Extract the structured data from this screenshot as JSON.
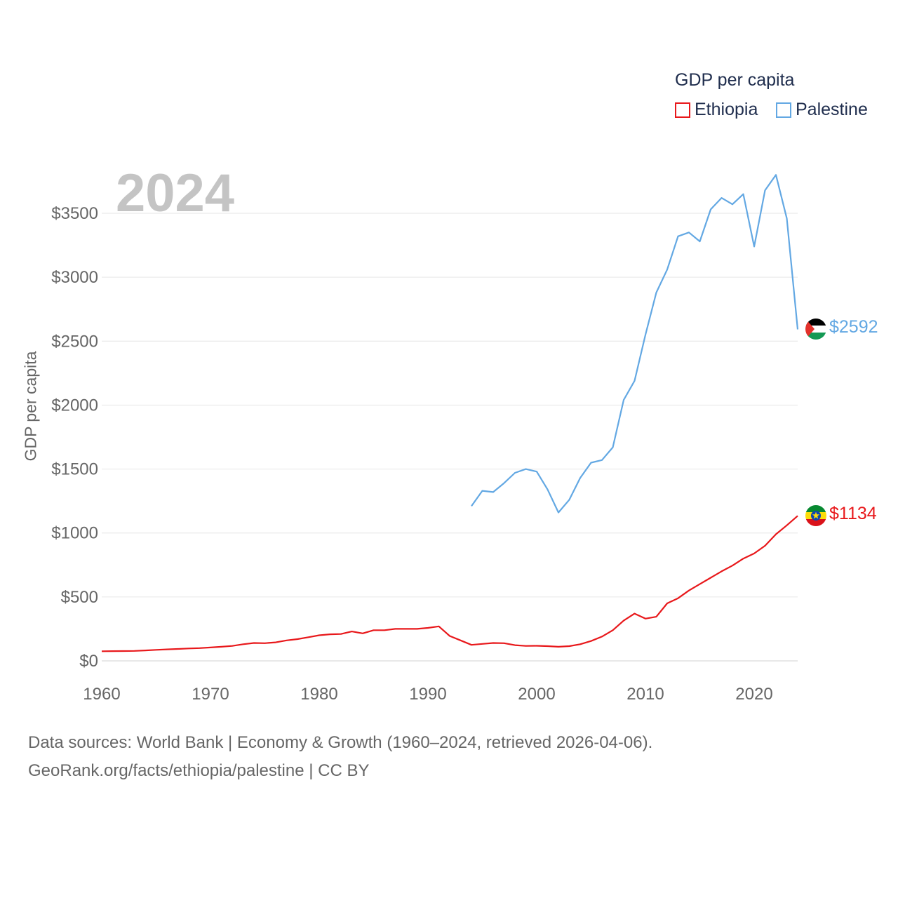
{
  "legend": {
    "title": "GDP per capita",
    "items": [
      {
        "name": "Ethiopia",
        "color": "#e8181b"
      },
      {
        "name": "Palestine",
        "color": "#63a8e3"
      }
    ]
  },
  "year_label": "2024",
  "end_labels": {
    "ethiopia": "$1134",
    "palestine": "$2592"
  },
  "footer": {
    "line1": "Data sources: World Bank | Economy & Growth (1960–2024, retrieved 2026-04-06).",
    "line2": "GeoRank.org/facts/ethiopia/palestine | CC BY"
  },
  "chart_data": {
    "type": "line",
    "title": "GDP per capita",
    "xlabel": "",
    "ylabel": "GDP per capita",
    "xlim": [
      1960,
      2024
    ],
    "ylim": [
      0,
      3500
    ],
    "x_ticks": [
      1960,
      1970,
      1980,
      1990,
      2000,
      2010,
      2020
    ],
    "x_tick_labels": [
      "1960",
      "1970",
      "1980",
      "1990",
      "2000",
      "2010",
      "2020"
    ],
    "y_ticks": [
      0,
      500,
      1000,
      1500,
      2000,
      2500,
      3000,
      3500
    ],
    "y_tick_labels": [
      "$0",
      "$500",
      "$1000",
      "$1500",
      "$2000",
      "$2500",
      "$3000",
      "$3500"
    ],
    "grid": true,
    "series": [
      {
        "name": "Ethiopia",
        "color": "#e8181b",
        "x": [
          1960,
          1961,
          1962,
          1963,
          1964,
          1965,
          1966,
          1967,
          1968,
          1969,
          1970,
          1971,
          1972,
          1973,
          1974,
          1975,
          1976,
          1977,
          1978,
          1979,
          1980,
          1981,
          1982,
          1983,
          1984,
          1985,
          1986,
          1987,
          1988,
          1989,
          1990,
          1991,
          1992,
          1993,
          1994,
          1995,
          1996,
          1997,
          1998,
          1999,
          2000,
          2001,
          2002,
          2003,
          2004,
          2005,
          2006,
          2007,
          2008,
          2009,
          2010,
          2011,
          2012,
          2013,
          2014,
          2015,
          2016,
          2017,
          2018,
          2019,
          2020,
          2021,
          2022,
          2023,
          2024
        ],
        "values": [
          75,
          76,
          77,
          78,
          82,
          86,
          90,
          93,
          97,
          100,
          105,
          110,
          117,
          130,
          140,
          138,
          145,
          160,
          170,
          185,
          200,
          208,
          210,
          230,
          215,
          240,
          240,
          250,
          250,
          250,
          258,
          270,
          195,
          160,
          125,
          133,
          140,
          138,
          123,
          117,
          118,
          115,
          110,
          115,
          130,
          155,
          190,
          240,
          315,
          370,
          330,
          345,
          450,
          490,
          550,
          600,
          650,
          700,
          745,
          800,
          840,
          900,
          990,
          1060,
          1134
        ]
      },
      {
        "name": "Palestine",
        "color": "#63a8e3",
        "x": [
          1994,
          1995,
          1996,
          1997,
          1998,
          1999,
          2000,
          2001,
          2002,
          2003,
          2004,
          2005,
          2006,
          2007,
          2008,
          2009,
          2010,
          2011,
          2012,
          2013,
          2014,
          2015,
          2016,
          2017,
          2018,
          2019,
          2020,
          2021,
          2022,
          2023,
          2024
        ],
        "values": [
          1210,
          1330,
          1320,
          1390,
          1470,
          1500,
          1480,
          1340,
          1160,
          1260,
          1430,
          1550,
          1570,
          1670,
          2040,
          2190,
          2550,
          2880,
          3060,
          3320,
          3350,
          3280,
          3530,
          3620,
          3570,
          3650,
          3240,
          3680,
          3800,
          3460,
          2592
        ]
      }
    ]
  }
}
